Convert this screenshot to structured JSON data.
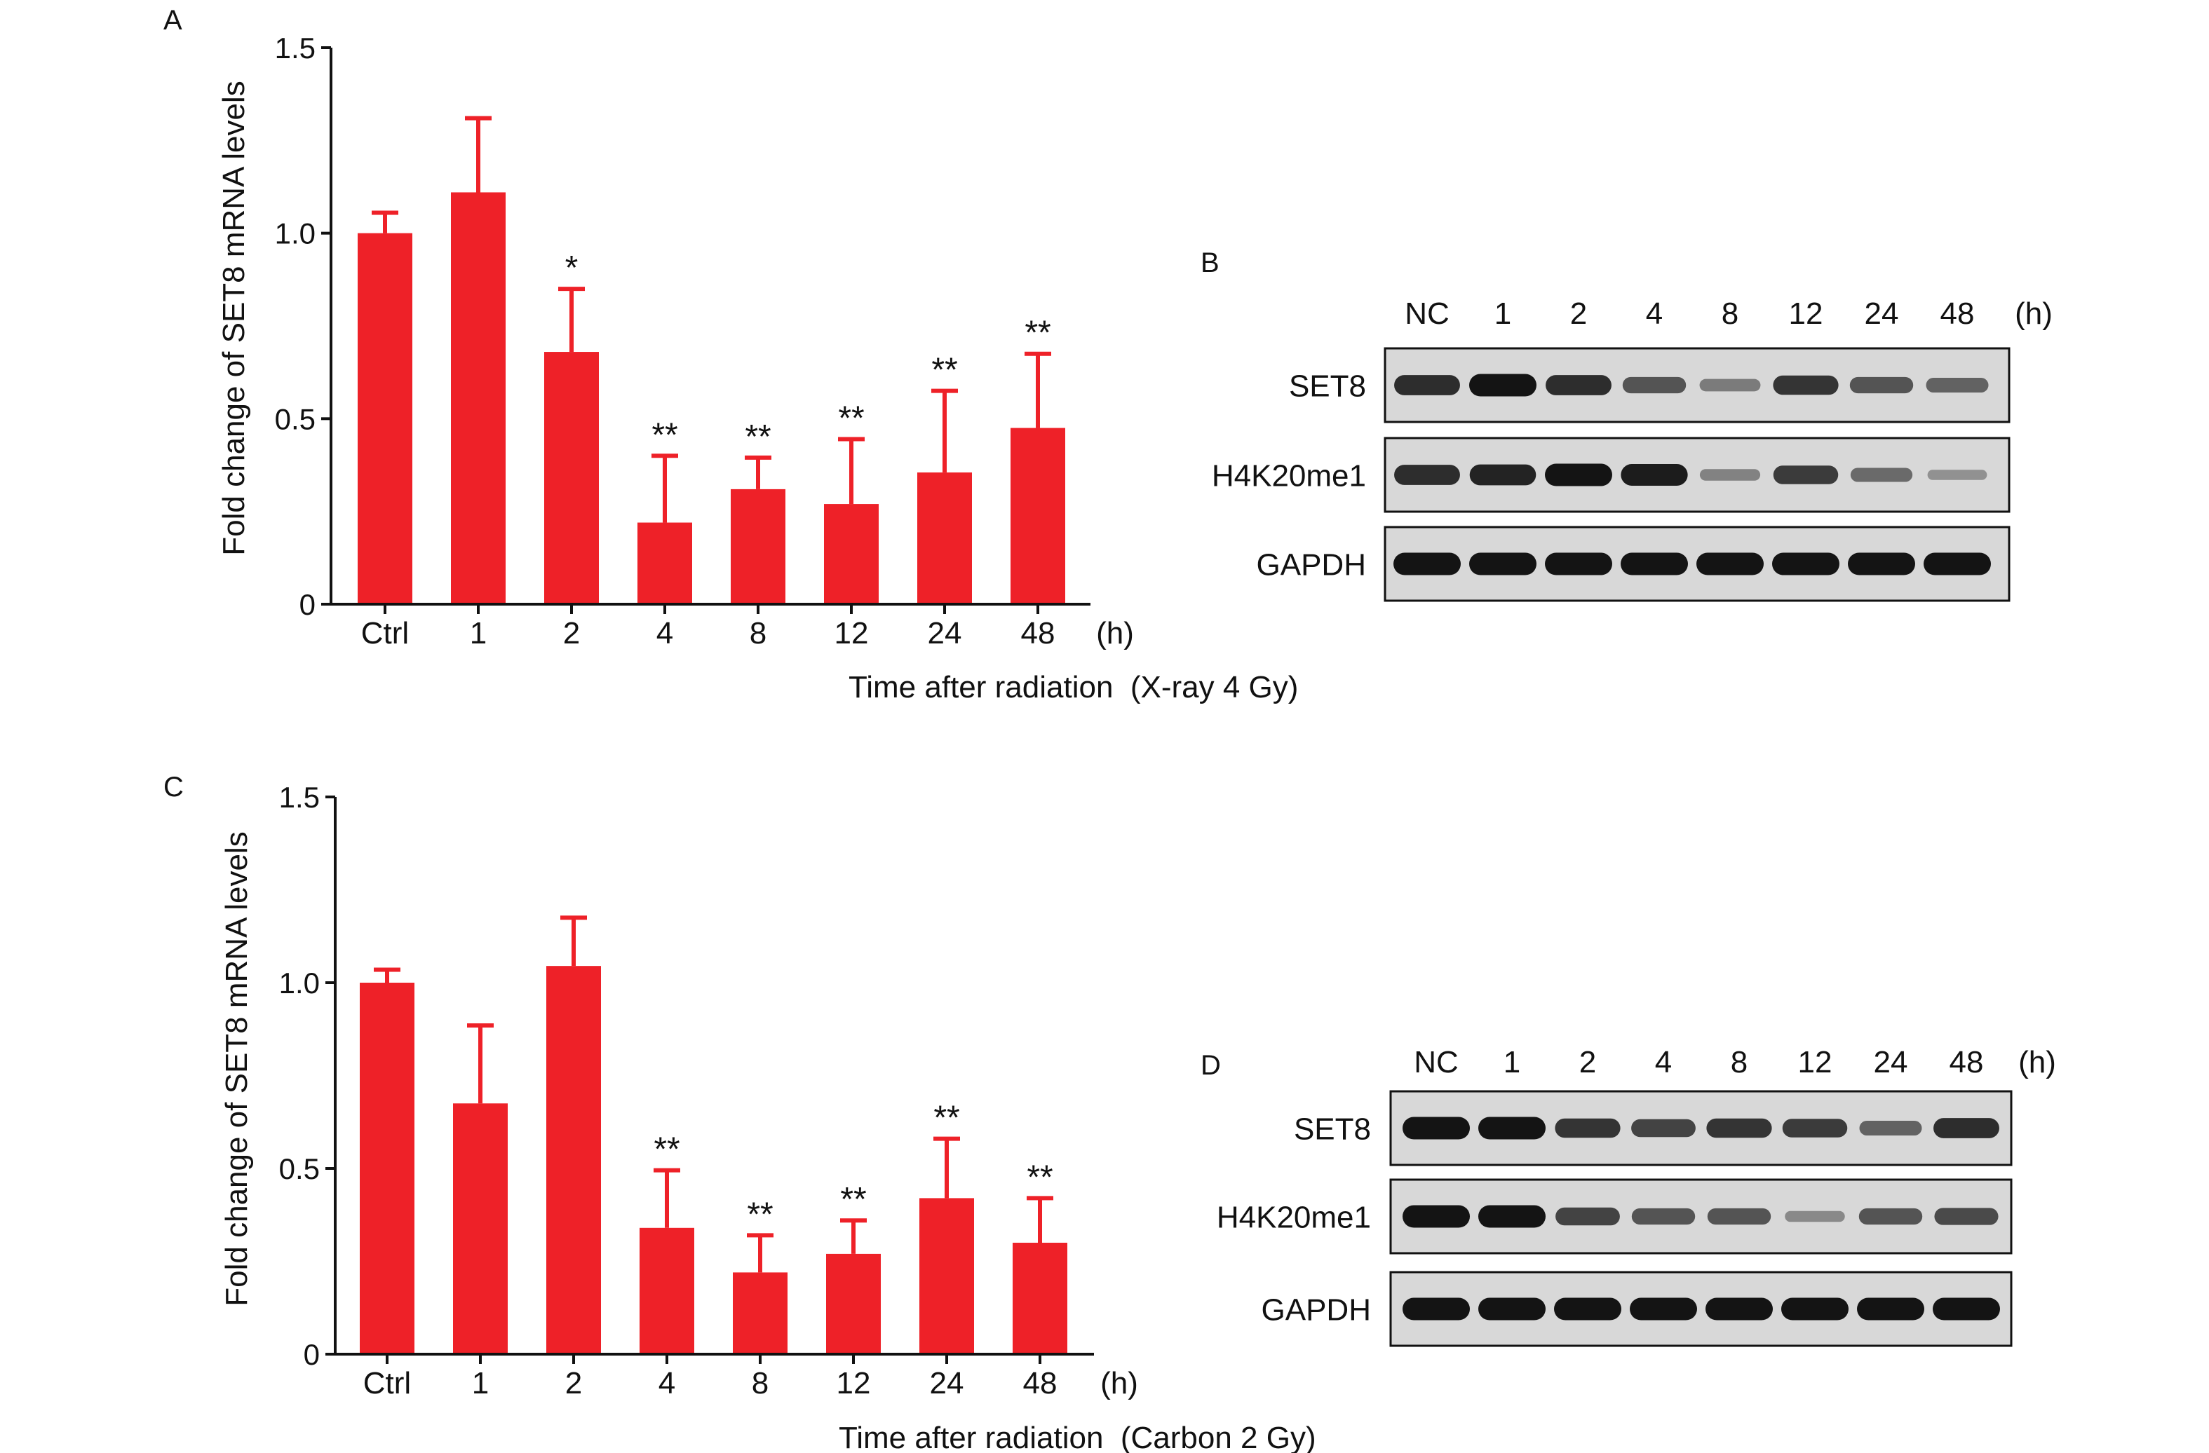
{
  "colors": {
    "bar": "#ee2128",
    "axis": "#111111",
    "blot_bg": "#d8d8d8",
    "band": "#141414"
  },
  "chart_data": [
    {
      "panel": "A",
      "type": "bar",
      "categories": [
        "Ctrl",
        "1",
        "2",
        "4",
        "8",
        "12",
        "24",
        "48"
      ],
      "x_unit": "(h)",
      "values": [
        1.0,
        1.11,
        0.68,
        0.22,
        0.31,
        0.27,
        0.355,
        0.475
      ],
      "errors": [
        0.055,
        0.2,
        0.17,
        0.18,
        0.085,
        0.175,
        0.22,
        0.2
      ],
      "significance": [
        "",
        "",
        "*",
        "**",
        "**",
        "**",
        "**",
        "**"
      ],
      "xlabel": "Time after radiation  (X-ray 4 Gy)",
      "ylabel": "Fold change of SET8 mRNA levels",
      "ylim": [
        0,
        1.5
      ],
      "yticks": [
        0,
        0.5,
        1.0,
        1.5
      ],
      "ytick_labels": [
        "0",
        "0.5",
        "1.0",
        "1.5"
      ],
      "grid": false
    },
    {
      "panel": "C",
      "type": "bar",
      "categories": [
        "Ctrl",
        "1",
        "2",
        "4",
        "8",
        "12",
        "24",
        "48"
      ],
      "x_unit": "(h)",
      "values": [
        1.0,
        0.675,
        1.045,
        0.34,
        0.22,
        0.27,
        0.42,
        0.3
      ],
      "errors": [
        0.035,
        0.21,
        0.13,
        0.155,
        0.1,
        0.09,
        0.16,
        0.12
      ],
      "significance": [
        "",
        "",
        "",
        "**",
        "**",
        "**",
        "**",
        "**"
      ],
      "xlabel": "Time after radiation  (Carbon 2 Gy)",
      "ylabel": "Fold change of SET8 mRNA levels",
      "ylim": [
        0,
        1.5
      ],
      "yticks": [
        0,
        0.5,
        1.0,
        1.5
      ],
      "ytick_labels": [
        "0",
        "0.5",
        "1.0",
        "1.5"
      ],
      "grid": false
    }
  ],
  "blots": [
    {
      "panel": "B",
      "lanes": [
        "NC",
        "1",
        "2",
        "4",
        "8",
        "12",
        "24",
        "48"
      ],
      "unit": "(h)",
      "rows": [
        {
          "label": "SET8",
          "intensity": [
            0.85,
            1.0,
            0.85,
            0.6,
            0.35,
            0.8,
            0.6,
            0.5
          ]
        },
        {
          "label": "H4K20me1",
          "intensity": [
            0.85,
            0.9,
            1.0,
            0.95,
            0.3,
            0.75,
            0.45,
            0.2
          ]
        },
        {
          "label": "GAPDH",
          "intensity": [
            1.0,
            1.0,
            1.0,
            1.0,
            1.0,
            1.0,
            1.0,
            1.0
          ]
        }
      ]
    },
    {
      "panel": "D",
      "lanes": [
        "NC",
        "1",
        "2",
        "4",
        "8",
        "12",
        "24",
        "48"
      ],
      "unit": "(h)",
      "rows": [
        {
          "label": "SET8",
          "intensity": [
            1.0,
            1.0,
            0.8,
            0.7,
            0.8,
            0.75,
            0.5,
            0.85
          ]
        },
        {
          "label": "H4K20me1",
          "intensity": [
            1.0,
            1.0,
            0.7,
            0.6,
            0.6,
            0.25,
            0.6,
            0.65
          ]
        },
        {
          "label": "GAPDH",
          "intensity": [
            1.0,
            1.0,
            1.0,
            1.0,
            1.0,
            1.0,
            1.0,
            1.0
          ]
        }
      ]
    }
  ]
}
